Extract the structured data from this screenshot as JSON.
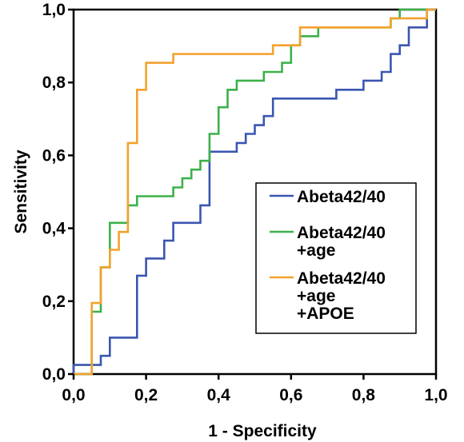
{
  "chart_data": {
    "type": "line",
    "xlabel": "1 - Specificity",
    "ylabel": "Sensitivity",
    "xlim": [
      0,
      1
    ],
    "ylim": [
      0,
      1
    ],
    "xticks": [
      "0,0",
      "0,2",
      "0,4",
      "0,6",
      "0,8",
      "1,0"
    ],
    "yticks": [
      "0,0",
      "0,2",
      "0,4",
      "0,6",
      "0,8",
      "1,0"
    ],
    "grid": false,
    "legend_position": "right-center",
    "series": [
      {
        "name": [
          "Abeta42/40"
        ],
        "color": "#3b56b0",
        "points": [
          [
            0,
            0
          ],
          [
            0,
            0.025
          ],
          [
            0.075,
            0.025
          ],
          [
            0.075,
            0.05
          ],
          [
            0.1,
            0.05
          ],
          [
            0.1,
            0.1
          ],
          [
            0.175,
            0.1
          ],
          [
            0.175,
            0.27
          ],
          [
            0.2,
            0.27
          ],
          [
            0.2,
            0.317
          ],
          [
            0.25,
            0.317
          ],
          [
            0.25,
            0.366
          ],
          [
            0.275,
            0.366
          ],
          [
            0.275,
            0.415
          ],
          [
            0.35,
            0.415
          ],
          [
            0.35,
            0.463
          ],
          [
            0.375,
            0.463
          ],
          [
            0.375,
            0.61
          ],
          [
            0.45,
            0.61
          ],
          [
            0.45,
            0.634
          ],
          [
            0.475,
            0.634
          ],
          [
            0.475,
            0.659
          ],
          [
            0.5,
            0.659
          ],
          [
            0.5,
            0.683
          ],
          [
            0.525,
            0.683
          ],
          [
            0.525,
            0.708
          ],
          [
            0.55,
            0.708
          ],
          [
            0.55,
            0.756
          ],
          [
            0.725,
            0.756
          ],
          [
            0.725,
            0.78
          ],
          [
            0.8,
            0.78
          ],
          [
            0.8,
            0.805
          ],
          [
            0.85,
            0.805
          ],
          [
            0.85,
            0.829
          ],
          [
            0.875,
            0.829
          ],
          [
            0.875,
            0.878
          ],
          [
            0.9,
            0.878
          ],
          [
            0.9,
            0.902
          ],
          [
            0.925,
            0.902
          ],
          [
            0.925,
            0.951
          ],
          [
            0.975,
            0.951
          ],
          [
            0.975,
            1
          ],
          [
            1,
            1
          ]
        ]
      },
      {
        "name": [
          "Abeta42/40",
          "+age"
        ],
        "color": "#3cb14a",
        "points": [
          [
            0,
            0
          ],
          [
            0.05,
            0
          ],
          [
            0.05,
            0.171
          ],
          [
            0.075,
            0.171
          ],
          [
            0.075,
            0.293
          ],
          [
            0.1,
            0.293
          ],
          [
            0.1,
            0.415
          ],
          [
            0.15,
            0.415
          ],
          [
            0.15,
            0.463
          ],
          [
            0.175,
            0.463
          ],
          [
            0.175,
            0.488
          ],
          [
            0.275,
            0.488
          ],
          [
            0.275,
            0.512
          ],
          [
            0.3,
            0.512
          ],
          [
            0.3,
            0.537
          ],
          [
            0.325,
            0.537
          ],
          [
            0.325,
            0.561
          ],
          [
            0.35,
            0.561
          ],
          [
            0.35,
            0.585
          ],
          [
            0.375,
            0.585
          ],
          [
            0.375,
            0.659
          ],
          [
            0.4,
            0.659
          ],
          [
            0.4,
            0.732
          ],
          [
            0.425,
            0.732
          ],
          [
            0.425,
            0.78
          ],
          [
            0.45,
            0.78
          ],
          [
            0.45,
            0.805
          ],
          [
            0.525,
            0.805
          ],
          [
            0.525,
            0.829
          ],
          [
            0.575,
            0.829
          ],
          [
            0.575,
            0.854
          ],
          [
            0.6,
            0.854
          ],
          [
            0.6,
            0.902
          ],
          [
            0.625,
            0.902
          ],
          [
            0.625,
            0.927
          ],
          [
            0.675,
            0.927
          ],
          [
            0.675,
            0.951
          ],
          [
            0.875,
            0.951
          ],
          [
            0.875,
            0.976
          ],
          [
            0.9,
            0.976
          ],
          [
            0.9,
            1
          ],
          [
            1,
            1
          ]
        ]
      },
      {
        "name": [
          "Abeta42/40",
          "+age",
          "+APOE"
        ],
        "color": "#f2a22e",
        "points": [
          [
            0,
            0
          ],
          [
            0.05,
            0
          ],
          [
            0.05,
            0.195
          ],
          [
            0.075,
            0.195
          ],
          [
            0.075,
            0.293
          ],
          [
            0.1,
            0.293
          ],
          [
            0.1,
            0.341
          ],
          [
            0.125,
            0.341
          ],
          [
            0.125,
            0.39
          ],
          [
            0.15,
            0.39
          ],
          [
            0.15,
            0.634
          ],
          [
            0.175,
            0.634
          ],
          [
            0.175,
            0.78
          ],
          [
            0.2,
            0.78
          ],
          [
            0.2,
            0.854
          ],
          [
            0.275,
            0.854
          ],
          [
            0.275,
            0.878
          ],
          [
            0.55,
            0.878
          ],
          [
            0.55,
            0.902
          ],
          [
            0.625,
            0.902
          ],
          [
            0.625,
            0.951
          ],
          [
            0.875,
            0.951
          ],
          [
            0.875,
            0.976
          ],
          [
            0.975,
            0.976
          ],
          [
            0.975,
            1
          ],
          [
            1,
            1
          ]
        ]
      }
    ]
  }
}
